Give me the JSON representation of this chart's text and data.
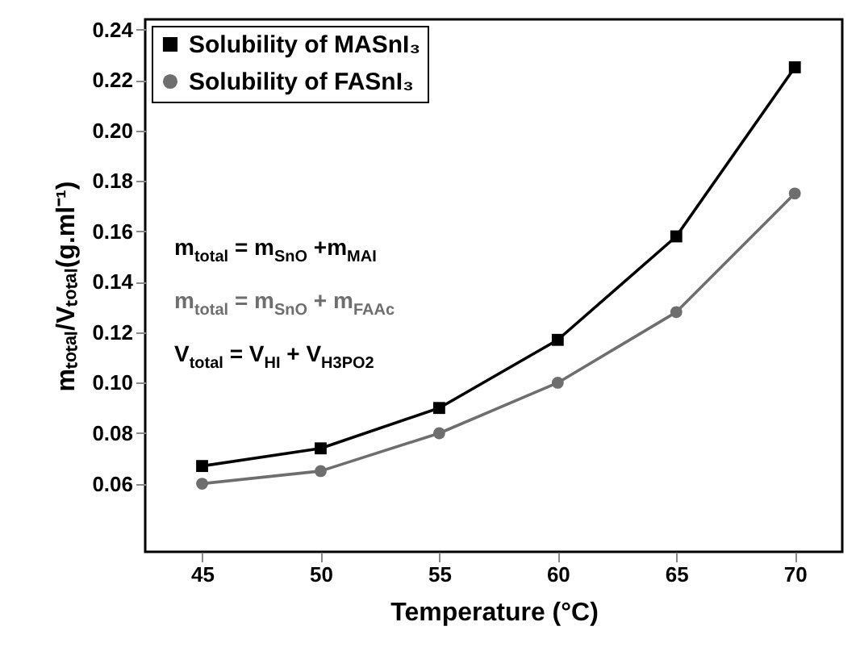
{
  "chart_data": {
    "type": "line",
    "xlabel": "Temperature (°C)",
    "ylabel": "mₜₒₜₐₗ/Vₜₒₜₐₗ(g.ml⁻¹)",
    "x": [
      45,
      50,
      55,
      60,
      65,
      70
    ],
    "series": [
      {
        "name": "Solubility of MASnI₃",
        "color": "#000000",
        "marker": "square",
        "values": [
          0.067,
          0.074,
          0.09,
          0.117,
          0.158,
          0.225
        ]
      },
      {
        "name": "Solubility of FASnI₃",
        "color": "#6e6e6e",
        "marker": "circle",
        "values": [
          0.06,
          0.065,
          0.08,
          0.1,
          0.128,
          0.175
        ]
      }
    ],
    "xlim": [
      42.6,
      72
    ],
    "xticks": [
      45,
      50,
      55,
      60,
      65,
      70
    ],
    "ylim": [
      0.033,
      0.244
    ],
    "yticks": [
      {
        "value": 0.06,
        "label": "0.06"
      },
      {
        "value": 0.08,
        "label": "0.08"
      },
      {
        "value": 0.1,
        "label": "0.10"
      },
      {
        "value": 0.12,
        "label": "0.12"
      },
      {
        "value": 0.14,
        "label": "0.14"
      },
      {
        "value": 0.16,
        "label": "0.16"
      },
      {
        "value": 0.18,
        "label": "0.18"
      },
      {
        "value": 0.2,
        "label": "0.20"
      },
      {
        "value": 0.22,
        "label": "0.22"
      },
      {
        "value": 0.24,
        "label": "0.24"
      }
    ],
    "legend": "top left",
    "grid": false,
    "line_style": "solid",
    "annotations": [
      "m$_{total}$ = m$_{SnO}$ +m$_{MAI}$",
      "m$_{total}$ = m$_{SnO}$ + m$_{FAAc}$",
      "V$_{total}$ = V$_{HI}$ + V$_{H3PO2}$"
    ]
  }
}
